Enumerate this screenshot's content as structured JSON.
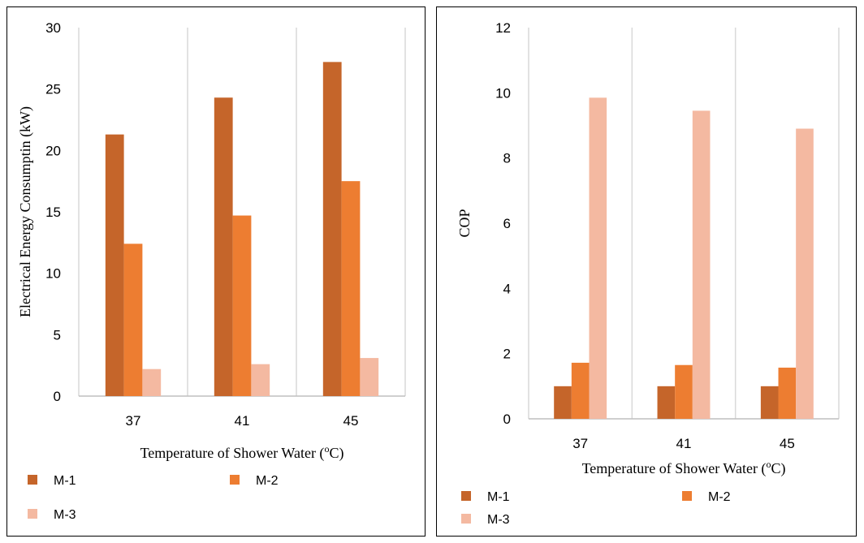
{
  "colors": {
    "M-1": "#c5652a",
    "M-2": "#ed7d31",
    "M-3": "#f4b9a1",
    "grid": "#d9d9d9",
    "axis": "#bfbfbf"
  },
  "chart_data": [
    {
      "type": "bar",
      "categories": [
        "37",
        "41",
        "45"
      ],
      "series": [
        {
          "name": "M-1",
          "values": [
            21.3,
            24.3,
            27.2
          ]
        },
        {
          "name": "M-2",
          "values": [
            12.4,
            14.7,
            17.5
          ]
        },
        {
          "name": "M-3",
          "values": [
            2.2,
            2.6,
            3.1
          ]
        }
      ],
      "xlabel": "Temperature of Shower Water (",
      "xlabel_sup": "o",
      "xlabel_end": "C)",
      "ylabel": "Electrical Energy Consumptin (kW)",
      "ylim": [
        0,
        30
      ],
      "yticks": [
        "0",
        "5",
        "10",
        "15",
        "20",
        "25",
        "30"
      ],
      "grid": "vertical",
      "legend": "bottom"
    },
    {
      "type": "bar",
      "categories": [
        "37",
        "41",
        "45"
      ],
      "series": [
        {
          "name": "M-1",
          "values": [
            1.0,
            1.0,
            1.0
          ]
        },
        {
          "name": "M-2",
          "values": [
            1.72,
            1.65,
            1.57
          ]
        },
        {
          "name": "M-3",
          "values": [
            9.85,
            9.45,
            8.9
          ]
        }
      ],
      "xlabel": "Temperature of Shower Water (",
      "xlabel_sup": "o",
      "xlabel_end": "C)",
      "ylabel": "COP",
      "ylim": [
        0,
        12
      ],
      "yticks": [
        "0",
        "2",
        "4",
        "6",
        "8",
        "10",
        "12"
      ],
      "grid": "vertical",
      "legend": "bottom"
    }
  ]
}
